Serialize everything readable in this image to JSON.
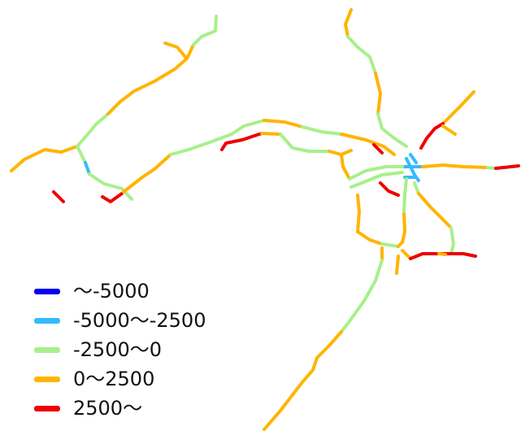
{
  "map": {
    "background": "#ffffff",
    "line_colors": {
      "very_low": "#0000ee",
      "low": "#33bbff",
      "mid_low": "#a8f08a",
      "mid_high": "#ffb400",
      "high": "#ee0000"
    }
  },
  "legend": {
    "items": [
      {
        "label": "～-5000",
        "color": "#0000ee"
      },
      {
        "label": "-5000～-2500",
        "color": "#33bbff"
      },
      {
        "label": "-2500～0",
        "color": "#a8f08a"
      },
      {
        "label": "0～2500",
        "color": "#ffb400"
      },
      {
        "label": "2500～",
        "color": "#ee0000"
      }
    ]
  }
}
